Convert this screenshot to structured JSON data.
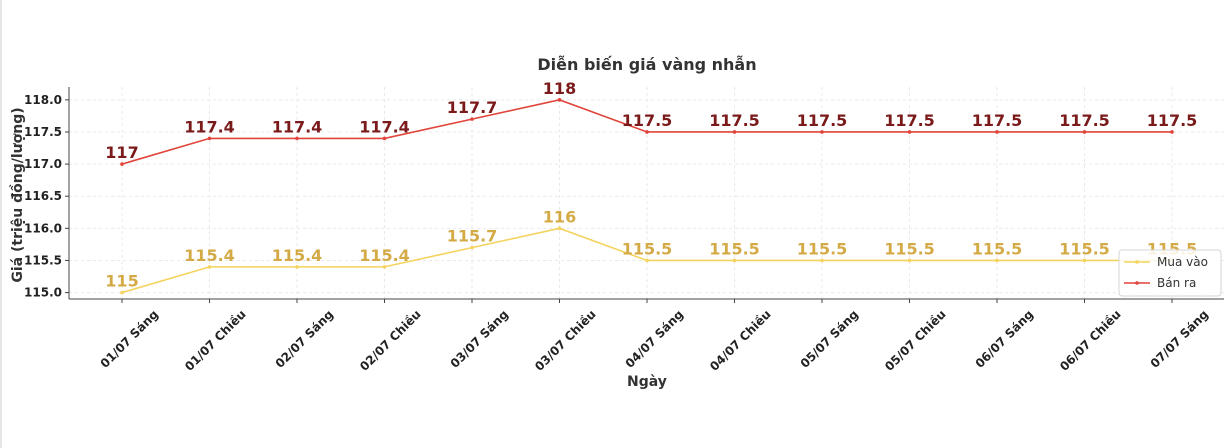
{
  "chart_data": {
    "type": "line",
    "title": "Diễn biến giá vàng nhẫn",
    "xlabel": "Ngày",
    "ylabel": "Giá (triệu đồng/lượng)",
    "categories": [
      "01/07 Sáng",
      "01/07 Chiều",
      "02/07 Sáng",
      "02/07 Chiều",
      "03/07 Sáng",
      "03/07 Chiều",
      "04/07 Sáng",
      "04/07 Chiều",
      "05/07 Sáng",
      "05/07 Chiều",
      "06/07 Sáng",
      "06/07 Chiều",
      "07/07 Sáng"
    ],
    "series": [
      {
        "name": "Mua vào",
        "color": "#f4d35e",
        "label_color": "#d4aa46",
        "values": [
          115,
          115.4,
          115.4,
          115.4,
          115.7,
          116,
          115.5,
          115.5,
          115.5,
          115.5,
          115.5,
          115.5,
          115.5
        ],
        "labels": [
          "115",
          "115.4",
          "115.4",
          "115.4",
          "115.7",
          "116",
          "115.5",
          "115.5",
          "115.5",
          "115.5",
          "115.5",
          "115.5",
          "115.5"
        ]
      },
      {
        "name": "Bán ra",
        "color": "#e0443a",
        "label_color": "#7b1a1a",
        "values": [
          117,
          117.4,
          117.4,
          117.4,
          117.7,
          118,
          117.5,
          117.5,
          117.5,
          117.5,
          117.5,
          117.5,
          117.5
        ],
        "labels": [
          "117",
          "117.4",
          "117.4",
          "117.4",
          "117.7",
          "118",
          "117.5",
          "117.5",
          "117.5",
          "117.5",
          "117.5",
          "117.5",
          "117.5"
        ]
      }
    ],
    "yticks": [
      "115.0",
      "115.5",
      "116.0",
      "116.5",
      "117.0",
      "117.5",
      "118.0"
    ],
    "ylim": [
      114.9,
      118.2
    ],
    "grid": true,
    "legend_position": "right"
  }
}
